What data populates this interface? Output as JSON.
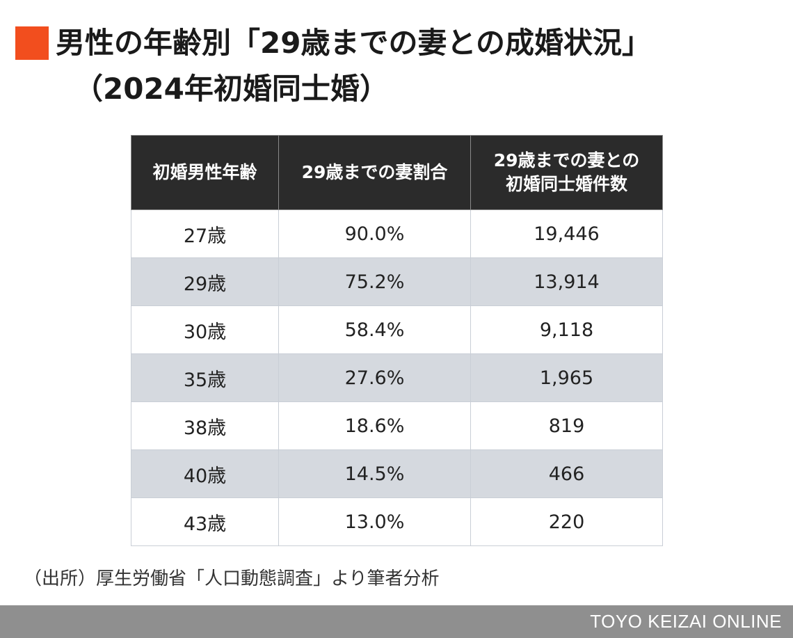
{
  "title": {
    "line1": "男性の年齢別「29歳までの妻との成婚状況」",
    "line2": "（2024年初婚同士婚）"
  },
  "colors": {
    "accent": "#f24e1e",
    "header_bg": "#2b2b2b",
    "stripe": "#d5d9df",
    "footer_bg": "#8f8f8f"
  },
  "chart_data": {
    "type": "table",
    "columns": [
      "初婚男性年齢",
      "29歳までの妻割合",
      "29歳までの妻との初婚同士婚件数"
    ],
    "column_lines": [
      [
        "初婚男性年齢"
      ],
      [
        "29歳までの妻割合"
      ],
      [
        "29歳までの妻との",
        "初婚同士婚件数"
      ]
    ],
    "rows": [
      [
        "27歳",
        "90.0%",
        "19,446"
      ],
      [
        "29歳",
        "75.2%",
        "13,914"
      ],
      [
        "30歳",
        "58.4%",
        "9,118"
      ],
      [
        "35歳",
        "27.6%",
        "1,965"
      ],
      [
        "38歳",
        "18.6%",
        "819"
      ],
      [
        "40歳",
        "14.5%",
        "466"
      ],
      [
        "43歳",
        "13.0%",
        "220"
      ]
    ]
  },
  "source": "（出所）厚生労働省「人口動態調査」より筆者分析",
  "footer": "TOYO KEIZAI ONLINE"
}
